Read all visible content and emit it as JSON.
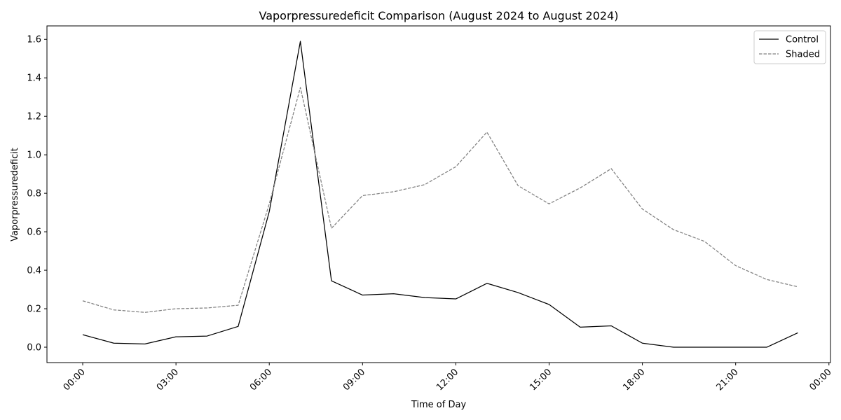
{
  "chart_data": {
    "type": "line",
    "title": "Vaporpressuredeficit Comparison (August 2024 to August 2024)",
    "xlabel": "Time of Day",
    "ylabel": "Vaporpressuredeficit",
    "x": [
      0,
      1,
      2,
      3,
      4,
      5,
      6,
      7,
      8,
      9,
      10,
      11,
      12,
      13,
      14,
      15,
      16,
      17,
      18,
      19,
      20,
      21,
      22,
      23
    ],
    "xlim": [
      -1.15,
      24.05
    ],
    "ylim": [
      -0.08,
      1.67
    ],
    "x_ticks": [
      {
        "value": 0,
        "label": "00:00"
      },
      {
        "value": 3,
        "label": "03:00"
      },
      {
        "value": 6,
        "label": "06:00"
      },
      {
        "value": 9,
        "label": "09:00"
      },
      {
        "value": 12,
        "label": "12:00"
      },
      {
        "value": 15,
        "label": "15:00"
      },
      {
        "value": 18,
        "label": "18:00"
      },
      {
        "value": 21,
        "label": "21:00"
      },
      {
        "value": 24,
        "label": "00:00"
      }
    ],
    "y_ticks": [
      {
        "value": 0.0,
        "label": "0.0"
      },
      {
        "value": 0.2,
        "label": "0.2"
      },
      {
        "value": 0.4,
        "label": "0.4"
      },
      {
        "value": 0.6,
        "label": "0.6"
      },
      {
        "value": 0.8,
        "label": "0.8"
      },
      {
        "value": 1.0,
        "label": "1.0"
      },
      {
        "value": 1.2,
        "label": "1.2"
      },
      {
        "value": 1.4,
        "label": "1.4"
      },
      {
        "value": 1.6,
        "label": "1.6"
      }
    ],
    "grid": false,
    "legend_position": "top-right",
    "series": [
      {
        "name": "Control",
        "color": "#000000",
        "style": "solid",
        "values": [
          0.065,
          0.021,
          0.017,
          0.054,
          0.058,
          0.108,
          0.705,
          1.59,
          0.345,
          0.271,
          0.278,
          0.258,
          0.251,
          0.332,
          0.284,
          0.222,
          0.104,
          0.111,
          0.021,
          0.0,
          0.0,
          0.0,
          0.0,
          0.075
        ]
      },
      {
        "name": "Shaded",
        "color": "#808080",
        "style": "dashed",
        "values": [
          0.241,
          0.194,
          0.181,
          0.2,
          0.204,
          0.218,
          0.745,
          1.35,
          0.618,
          0.788,
          0.808,
          0.845,
          0.938,
          1.118,
          0.84,
          0.745,
          0.828,
          0.928,
          0.718,
          0.611,
          0.55,
          0.424,
          0.352,
          0.314
        ]
      }
    ]
  }
}
